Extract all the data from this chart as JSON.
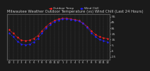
{
  "title": "Milwaukee Weather Outdoor Temperature (vs) Wind Chill (Last 24 Hours)",
  "title_fontsize": 3.8,
  "background_color": "#1a1a1a",
  "plot_bg_color": "#1a1a1a",
  "grid_color": "#555555",
  "temp_color": "#ff2222",
  "windchill_color": "#2222ff",
  "ylim": [
    -20,
    60
  ],
  "ytick_right": [
    -15,
    -5,
    5,
    15,
    25,
    35,
    45,
    55
  ],
  "ylabel_fontsize": 3.2,
  "xlabel_fontsize": 2.8,
  "num_hours": 25,
  "temp_values": [
    32,
    26,
    19,
    14,
    13,
    14,
    17,
    22,
    30,
    38,
    44,
    48,
    51,
    52,
    52,
    51,
    50,
    48,
    44,
    38,
    30,
    24,
    20,
    18,
    17
  ],
  "windchill_values": [
    26,
    20,
    12,
    7,
    6,
    7,
    11,
    17,
    26,
    35,
    41,
    46,
    49,
    51,
    51,
    50,
    49,
    47,
    43,
    36,
    27,
    20,
    15,
    13,
    11
  ],
  "hour_labels": [
    "12",
    "1",
    "2",
    "3",
    "4",
    "5",
    "6",
    "7",
    "8",
    "9",
    "10",
    "11",
    "12",
    "1",
    "2",
    "3",
    "4",
    "5",
    "6",
    "7",
    "8",
    "9",
    "10",
    "11",
    "12"
  ],
  "legend_temp": "Outdoor Temp",
  "legend_wc": "Wind Chill",
  "legend_fontsize": 3.0,
  "marker_size": 1.5,
  "line_width": 0.5,
  "text_color": "#cccccc"
}
